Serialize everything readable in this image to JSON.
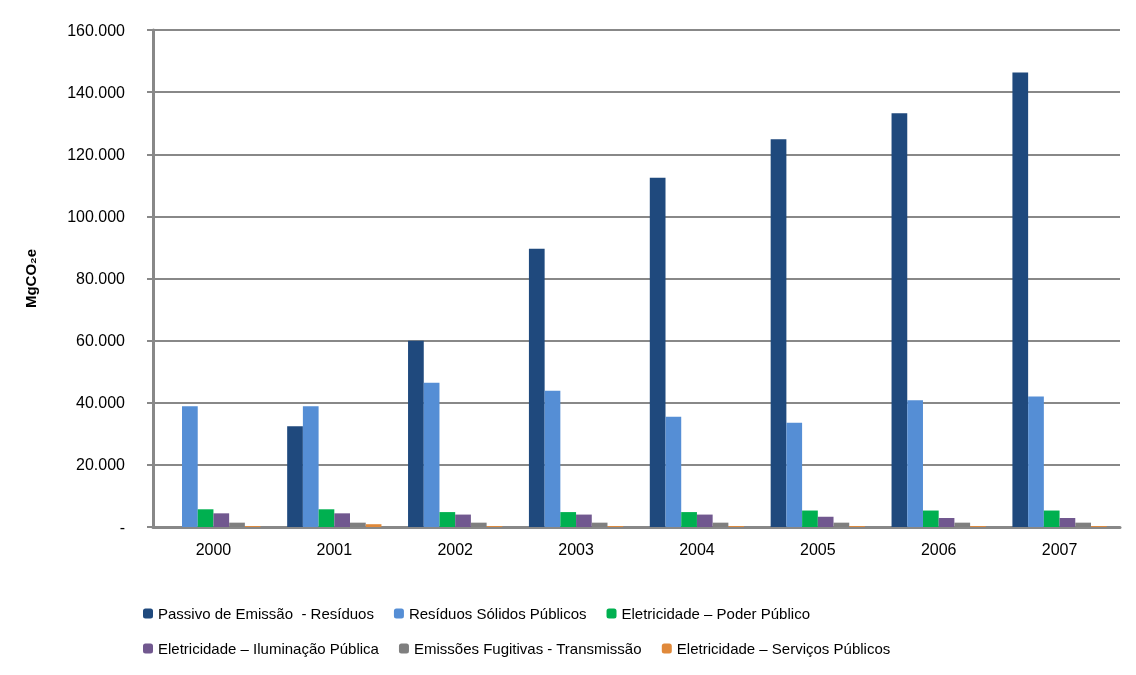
{
  "chart_data": {
    "type": "bar",
    "ylabel": "MgCO₂e",
    "categories": [
      "2000",
      "2001",
      "2002",
      "2003",
      "2004",
      "2005",
      "2006",
      "2007"
    ],
    "series": [
      {
        "name": "Passivo de Emissão  - Resíduos",
        "color": "#1f497d",
        "values": [
          0,
          32400,
          60000,
          89600,
          112400,
          124800,
          133200,
          146300
        ]
      },
      {
        "name": "Resíduos Sólidos Públicos",
        "color": "#558ed5",
        "values": [
          38900,
          38900,
          46400,
          43900,
          35500,
          33600,
          40800,
          42000
        ]
      },
      {
        "name": "Eletricidade – Poder Público",
        "color": "#00b050",
        "values": [
          5700,
          5700,
          4800,
          4800,
          4800,
          5300,
          5300,
          5300
        ]
      },
      {
        "name": "Eletricidade – Iluminação Pública",
        "color": "#71588f",
        "values": [
          4400,
          4400,
          4000,
          4000,
          4000,
          3300,
          2900,
          2900
        ]
      },
      {
        "name": "Emissões Fugitivas - Transmissão",
        "color": "#7f7f7f",
        "values": [
          1400,
          1400,
          1400,
          1400,
          1400,
          1400,
          1400,
          1400
        ]
      },
      {
        "name": "Eletricidade – Serviços Públicos",
        "color": "#e0893a",
        "values": [
          300,
          900,
          300,
          300,
          300,
          300,
          300,
          300
        ]
      }
    ],
    "ylim": [
      0,
      160000
    ],
    "yticks": [
      {
        "value": 0,
        "label": "-"
      },
      {
        "value": 20000,
        "label": "20.000"
      },
      {
        "value": 40000,
        "label": "40.000"
      },
      {
        "value": 60000,
        "label": "60.000"
      },
      {
        "value": 80000,
        "label": "80.000"
      },
      {
        "value": 100000,
        "label": "100.000"
      },
      {
        "value": 120000,
        "label": "120.000"
      },
      {
        "value": 140000,
        "label": "140.000"
      },
      {
        "value": 160000,
        "label": "160.000"
      }
    ],
    "grid": "y",
    "legend": "bottom"
  }
}
